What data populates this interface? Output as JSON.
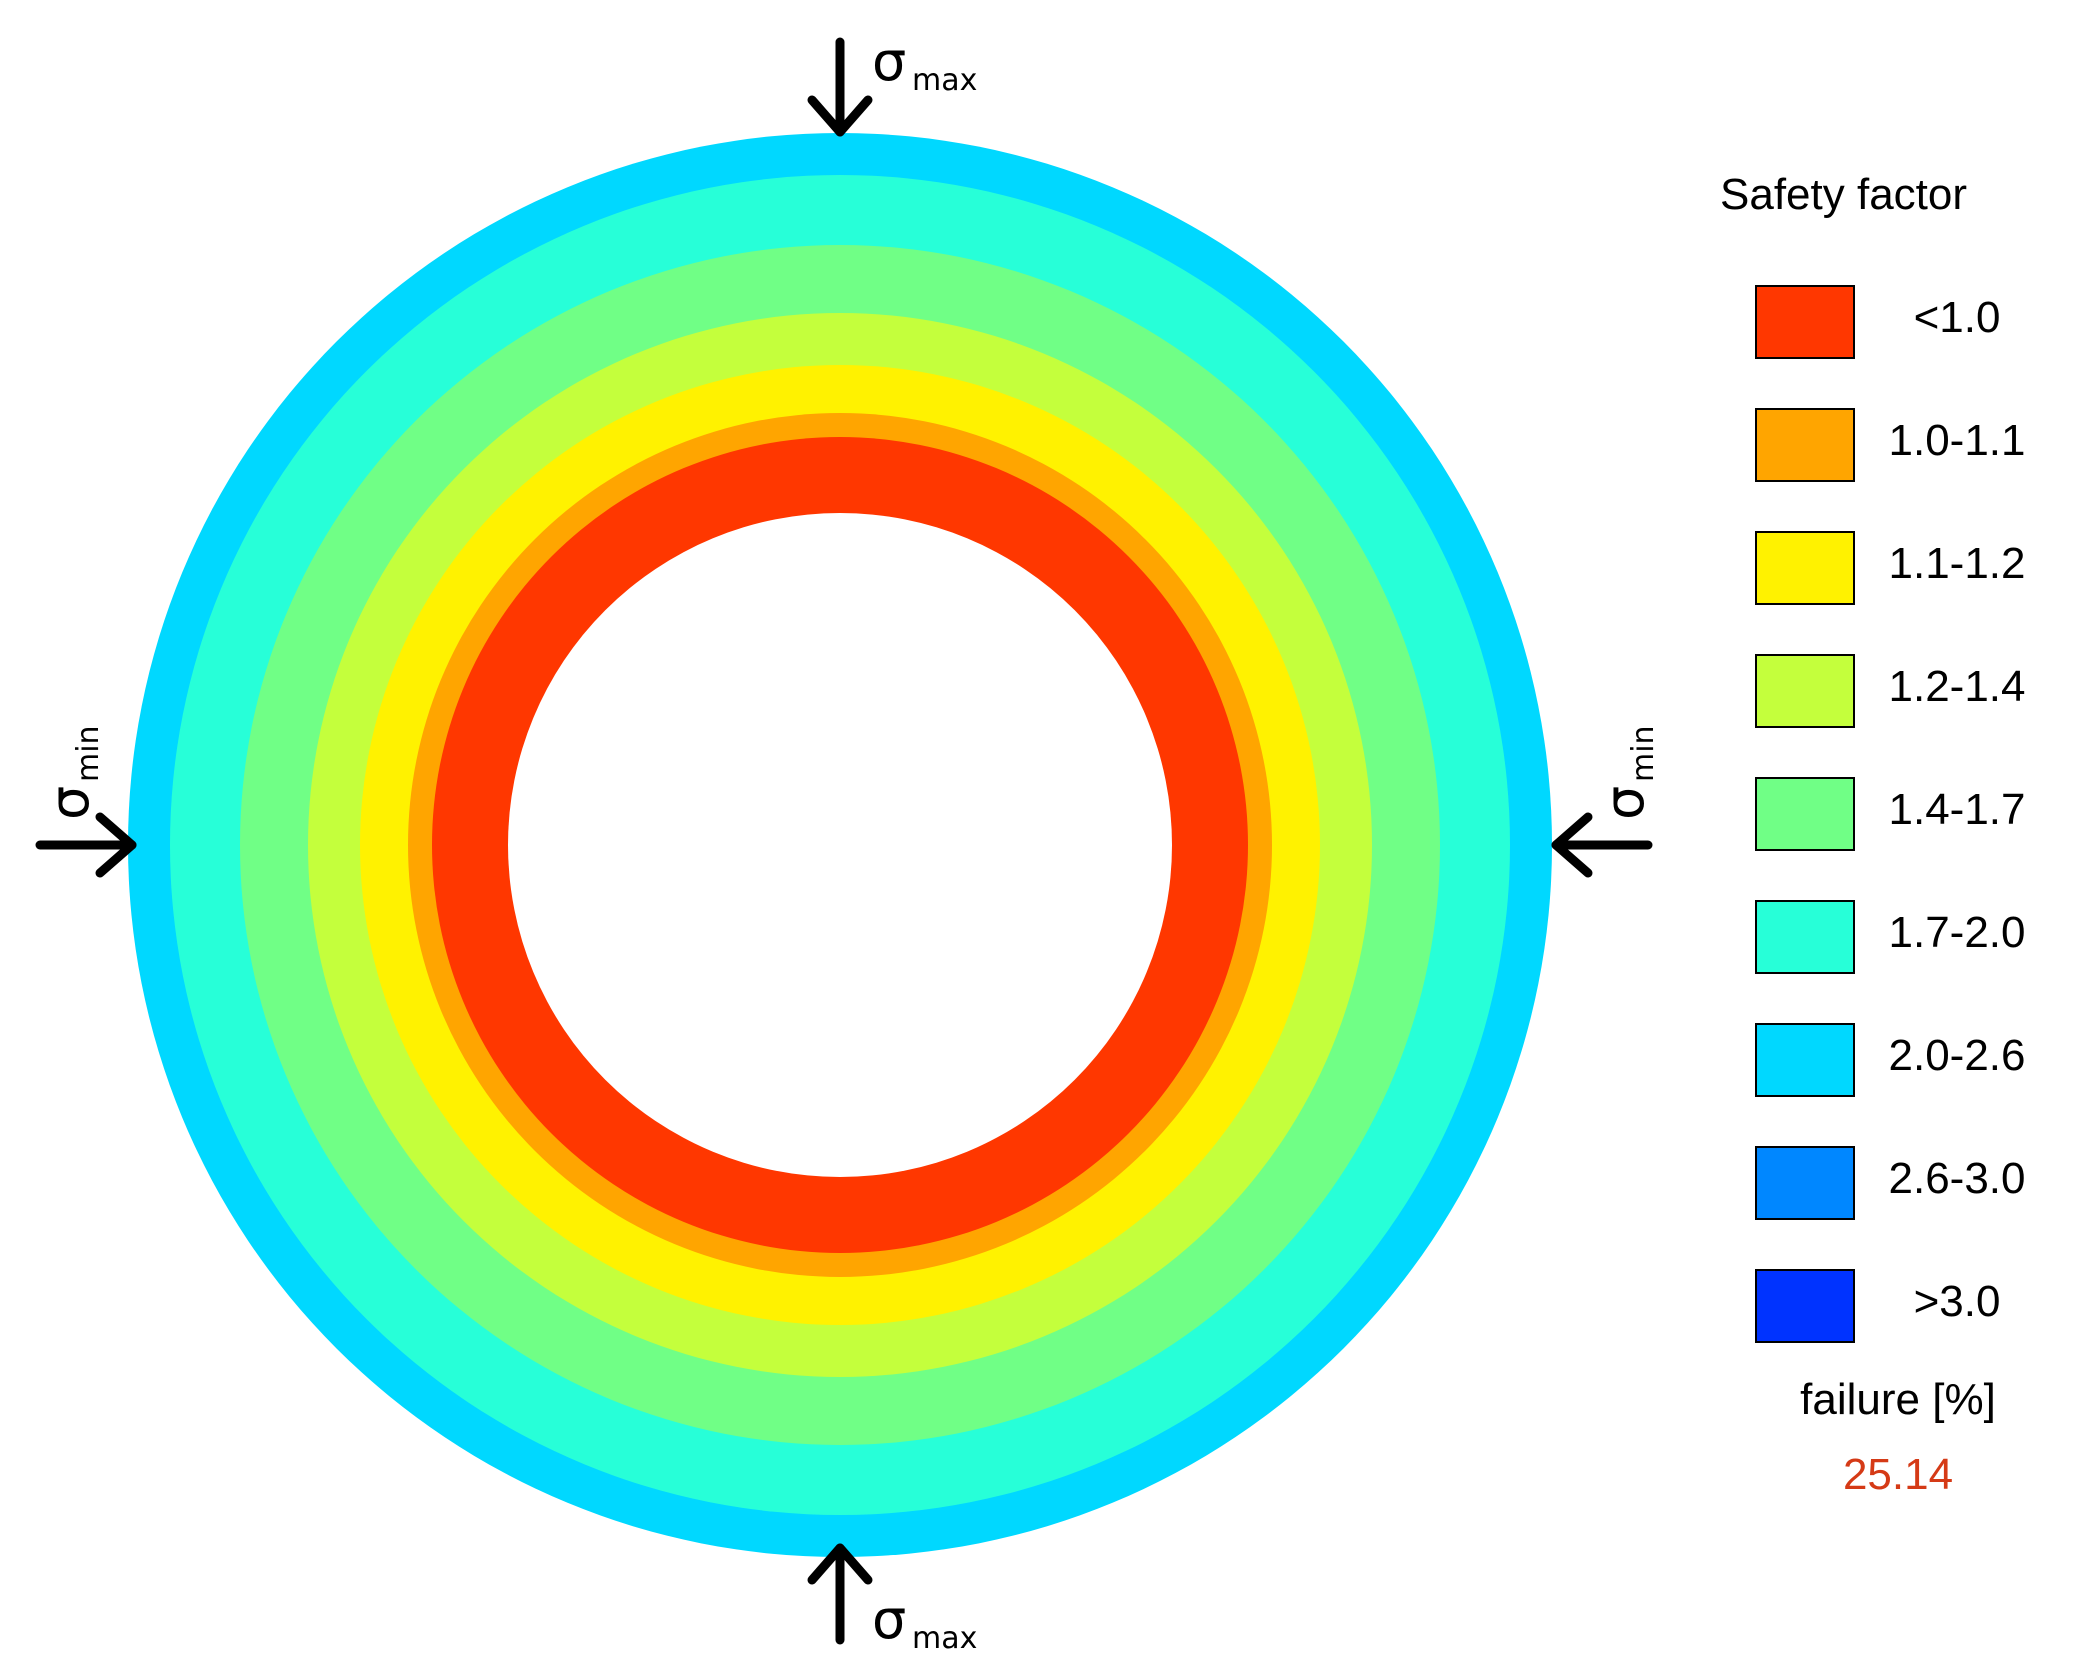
{
  "rings": [
    {
      "band": "2.0-2.6",
      "color": "#00D8FF"
    },
    {
      "band": "1.7-2.0",
      "color": "#27FFD8"
    },
    {
      "band": "1.4-1.7",
      "color": "#70FF86"
    },
    {
      "band": "1.2-1.4",
      "color": "#C4FF3C"
    },
    {
      "band": "1.1-1.2",
      "color": "#FFF200"
    },
    {
      "band": "1.0-1.1",
      "color": "#FFA500"
    },
    {
      "band": "<1.0",
      "color": "#FF3700"
    }
  ],
  "stress_labels": {
    "sigma": "σ",
    "max_subscript": "max",
    "min_subscript": "min"
  },
  "legend": {
    "title": "Safety factor",
    "items": [
      {
        "label": "<1.0",
        "color": "#FF3700"
      },
      {
        "label": "1.0-1.1",
        "color": "#FFA500"
      },
      {
        "label": "1.1-1.2",
        "color": "#FFF200"
      },
      {
        "label": "1.2-1.4",
        "color": "#C4FF3C"
      },
      {
        "label": "1.4-1.7",
        "color": "#70FF86"
      },
      {
        "label": "1.7-2.0",
        "color": "#27FFD8"
      },
      {
        "label": "2.0-2.6",
        "color": "#00D8FF"
      },
      {
        "label": "2.6-3.0",
        "color": "#0087FF"
      },
      {
        "label": ">3.0",
        "color": "#0033FF"
      }
    ],
    "failure_label": "failure [%]",
    "failure_value": "25.14",
    "failure_value_color": "#D53A16"
  }
}
